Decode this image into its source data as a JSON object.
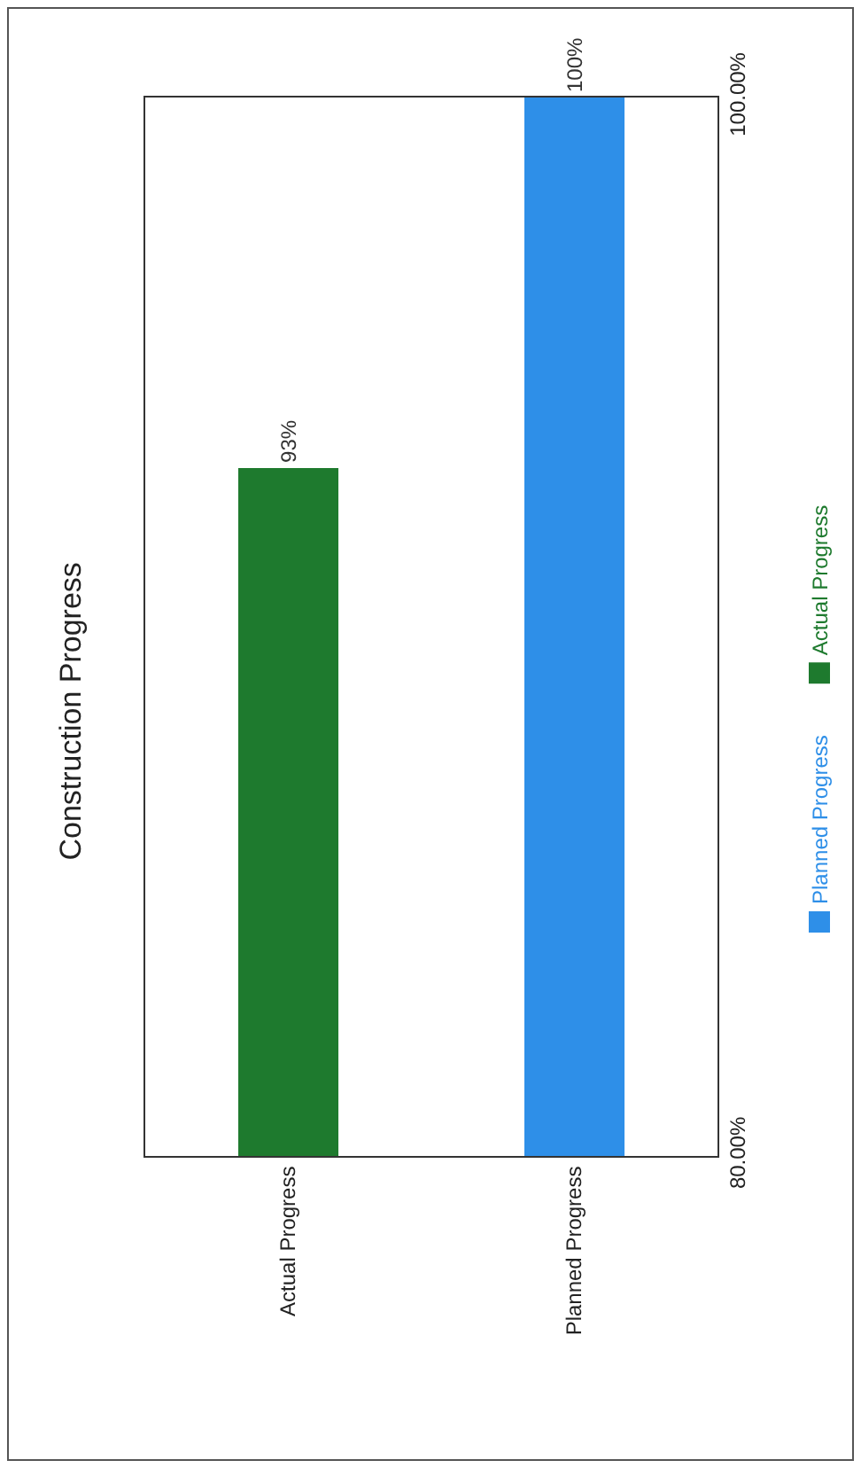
{
  "chart_data": {
    "type": "bar",
    "title": "Construction Progress",
    "categories": [
      "Actual Progress",
      "Planned Progress"
    ],
    "series": [
      {
        "name": "Planned Progress",
        "color": "#2e8fe8",
        "values": [
          null,
          100
        ],
        "value_labels": [
          null,
          "100%"
        ]
      },
      {
        "name": "Actual Progress",
        "color": "#1e7a2e",
        "values": [
          93,
          null
        ],
        "value_labels": [
          "93%",
          null
        ]
      }
    ],
    "ylim": [
      80,
      100
    ],
    "yticks": [
      {
        "value": 80,
        "label": "80.00%"
      },
      {
        "value": 100,
        "label": "100.00%"
      }
    ],
    "legend": "right"
  }
}
